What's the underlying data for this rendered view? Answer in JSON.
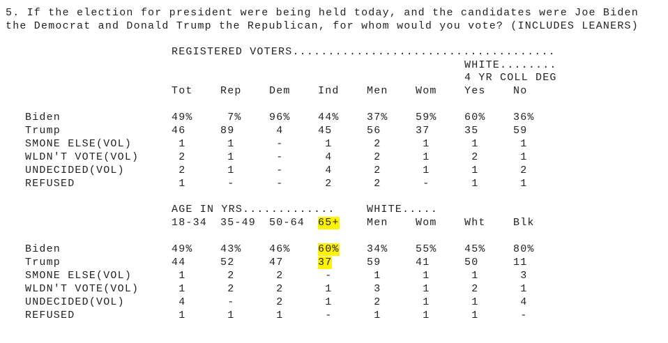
{
  "question": {
    "line1": "5. If the election for president were being held today, and the candidates were Joe Biden",
    "line2": "the Democrat and Donald Trump the Republican, for whom would you vote? (INCLUDES LEANERS)"
  },
  "highlight_color": "#fff200",
  "row_labels": [
    "Biden",
    "Trump",
    "SMONE ELSE(VOL)",
    "WLDN'T VOTE(VOL)",
    "UNDECIDED(VOL)",
    "REFUSED"
  ],
  "table1": {
    "group_header": "REGISTERED VOTERS.....................................",
    "subgroup_header1": "WHITE........",
    "subgroup_header2": "4 YR COLL DEG",
    "columns": [
      "Tot",
      "Rep",
      "Dem",
      "Ind",
      "Men",
      "Wom",
      "Yes",
      "No"
    ],
    "rows": [
      [
        "49%",
        "7%",
        "96%",
        "44%",
        "37%",
        "59%",
        "60%",
        "36%"
      ],
      [
        "46",
        "89",
        "4",
        "45",
        "56",
        "37",
        "35",
        "59"
      ],
      [
        "1",
        "1",
        "-",
        "1",
        "2",
        "1",
        "1",
        "1"
      ],
      [
        "2",
        "1",
        "-",
        "4",
        "2",
        "1",
        "2",
        "1"
      ],
      [
        "2",
        "1",
        "-",
        "4",
        "2",
        "1",
        "1",
        "2"
      ],
      [
        "1",
        "-",
        "-",
        "2",
        "2",
        "-",
        "1",
        "1"
      ]
    ]
  },
  "table2": {
    "group_header": "AGE IN YRS.............",
    "subgroup_header": "WHITE.....",
    "columns": [
      "18-34",
      "35-49",
      "50-64",
      "65+",
      "Men",
      "Wom",
      "Wht",
      "Blk"
    ],
    "highlighted_column": "65+",
    "highlighted_rows": [
      "Biden",
      "Trump"
    ],
    "rows": [
      [
        "49%",
        "43%",
        "46%",
        "60%",
        "34%",
        "55%",
        "45%",
        "80%"
      ],
      [
        "44",
        "52",
        "47",
        "37",
        "59",
        "41",
        "50",
        "11"
      ],
      [
        "1",
        "2",
        "2",
        "-",
        "1",
        "1",
        "1",
        "3"
      ],
      [
        "1",
        "2",
        "2",
        "1",
        "3",
        "1",
        "2",
        "1"
      ],
      [
        "4",
        "-",
        "2",
        "1",
        "2",
        "1",
        "1",
        "4"
      ],
      [
        "1",
        "1",
        "1",
        "-",
        "1",
        "1",
        "1",
        "-"
      ]
    ]
  }
}
